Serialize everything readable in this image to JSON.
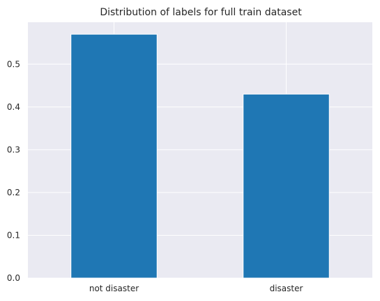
{
  "chart_data": {
    "type": "bar",
    "title": "Distribution of labels for full train dataset",
    "categories": [
      "not disaster",
      "disaster"
    ],
    "values": [
      0.57,
      0.43
    ],
    "xlabel": "",
    "ylabel": "",
    "ylim": [
      0,
      0.598
    ],
    "yticks": [
      0.0,
      0.1,
      0.2,
      0.3,
      0.4,
      0.5
    ],
    "ytick_labels": [
      "0.0",
      "0.1",
      "0.2",
      "0.3",
      "0.4",
      "0.5"
    ],
    "grid": true,
    "bar_color": "#1f77b4",
    "plot_background": "#eaeaf2",
    "grid_color": "#ffffff"
  }
}
